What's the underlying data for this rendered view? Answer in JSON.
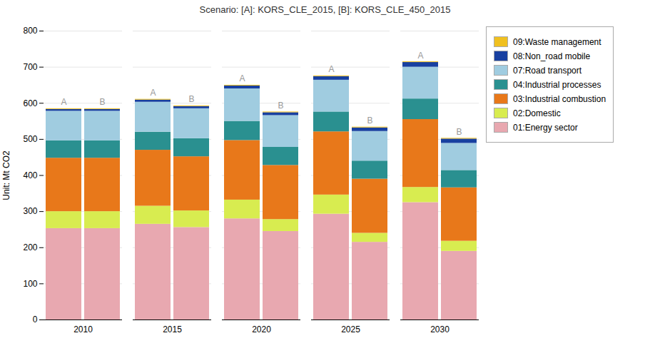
{
  "chart_data": {
    "type": "bar",
    "stacked": true,
    "subtitle": "Scenario: [A]: KORS_CLE_2015, [B]: KORS_CLE_450_2015",
    "ylabel": "Unit: Mt CO2",
    "categories": [
      "2010",
      "2015",
      "2020",
      "2025",
      "2030"
    ],
    "groups": [
      "A",
      "B"
    ],
    "series": [
      {
        "name": "01:Energy sector",
        "color": "#e8a8b0",
        "values": [
          [
            253,
            265,
            280,
            293,
            325
          ],
          [
            253,
            256,
            245,
            215,
            190
          ]
        ]
      },
      {
        "name": "02:Domestic",
        "color": "#d8ec50",
        "values": [
          [
            47,
            50,
            52,
            53,
            42
          ],
          [
            47,
            46,
            33,
            25,
            28
          ]
        ]
      },
      {
        "name": "03:Industrial combustion",
        "color": "#e8781a",
        "values": [
          [
            148,
            155,
            165,
            175,
            188
          ],
          [
            148,
            150,
            150,
            150,
            148
          ]
        ]
      },
      {
        "name": "04:Industrial processes",
        "color": "#2a9090",
        "values": [
          [
            48,
            50,
            53,
            55,
            57
          ],
          [
            48,
            50,
            50,
            50,
            48
          ]
        ]
      },
      {
        "name": "07:Road transport",
        "color": "#a0cce0",
        "values": [
          [
            82,
            83,
            90,
            88,
            88
          ],
          [
            82,
            83,
            88,
            82,
            75
          ]
        ]
      },
      {
        "name": "08:Non_road mobile",
        "color": "#1840a0",
        "values": [
          [
            5,
            6,
            8,
            10,
            13
          ],
          [
            5,
            6,
            8,
            10,
            12
          ]
        ]
      },
      {
        "name": "09:Waste management",
        "color": "#f0c020",
        "values": [
          [
            2,
            2,
            2,
            2,
            2
          ],
          [
            2,
            2,
            2,
            2,
            2
          ]
        ]
      }
    ],
    "ylim": [
      0,
      800
    ],
    "yticks": [
      0,
      100,
      200,
      300,
      400,
      500,
      600,
      700,
      800
    ],
    "grid": true,
    "legend": "right"
  }
}
